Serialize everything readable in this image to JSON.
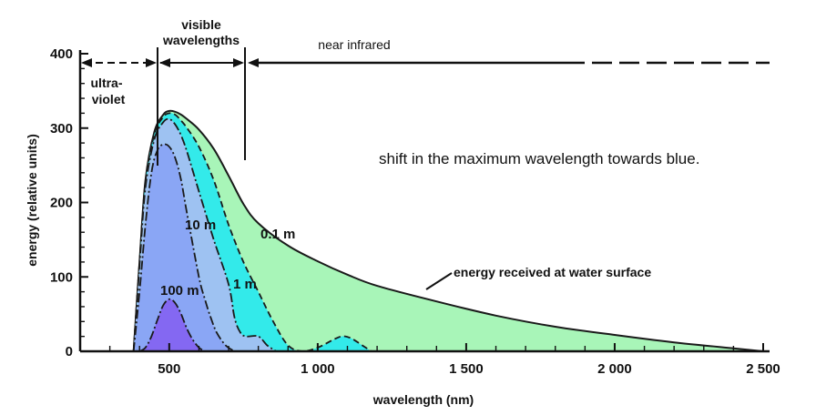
{
  "chart_data": {
    "type": "area",
    "xlabel": "wavelength (nm)",
    "ylabel": "energy (relative units)",
    "xlim": [
      200,
      2500
    ],
    "ylim": [
      0,
      400
    ],
    "x_ticks": [
      500,
      1000,
      1500,
      2000,
      2500
    ],
    "x_tick_labels": [
      "500",
      "1 000",
      "1 500",
      "2 000",
      "2 500"
    ],
    "y_ticks": [
      0,
      100,
      200,
      300,
      400
    ],
    "y_tick_labels": [
      "0",
      "100",
      "200",
      "300",
      "400"
    ],
    "bands": [
      {
        "label": "ultra-\nviolet",
        "range": [
          200,
          420
        ]
      },
      {
        "label": "visible\nwavelengths",
        "range": [
          420,
          720
        ]
      },
      {
        "label": "near infrared",
        "range": [
          720,
          2500
        ]
      }
    ],
    "series": [
      {
        "label": "energy received at water surface",
        "color": "#a8f5b8",
        "x": [
          380,
          400,
          420,
          450,
          480,
          500,
          520,
          540,
          560,
          600,
          650,
          700,
          750,
          800,
          900,
          1000,
          1100,
          1200,
          1400,
          1600,
          1800,
          2000,
          2200,
          2400,
          2500
        ],
        "y": [
          0,
          120,
          230,
          295,
          318,
          323,
          322,
          318,
          312,
          298,
          272,
          236,
          198,
          172,
          142,
          121,
          103,
          88,
          67,
          48,
          33,
          22,
          12,
          4,
          0
        ]
      },
      {
        "label": "0.1 m",
        "color": "#33eaea",
        "x": [
          380,
          400,
          420,
          450,
          480,
          500,
          520,
          540,
          560,
          600,
          650,
          700,
          750,
          800,
          850,
          900,
          950,
          1000,
          1050,
          1080,
          1110,
          1150,
          1180
        ],
        "y": [
          0,
          120,
          228,
          292,
          315,
          320,
          318,
          310,
          300,
          275,
          230,
          170,
          120,
          80,
          40,
          8,
          0,
          5,
          15,
          20,
          18,
          8,
          0
        ]
      },
      {
        "label": "1 m",
        "color": "#9ec2f2",
        "x": [
          380,
          400,
          420,
          450,
          480,
          500,
          520,
          540,
          560,
          600,
          650,
          700,
          720,
          740,
          760,
          800,
          830,
          860
        ],
        "y": [
          0,
          115,
          220,
          285,
          308,
          312,
          305,
          290,
          268,
          215,
          150,
          90,
          45,
          25,
          20,
          20,
          8,
          0
        ]
      },
      {
        "label": "10 m",
        "color": "#8aa6f5",
        "x": [
          380,
          400,
          420,
          440,
          460,
          480,
          500,
          520,
          540,
          560,
          600,
          620,
          640,
          660,
          690,
          720
        ],
        "y": [
          0,
          80,
          170,
          240,
          270,
          278,
          275,
          260,
          230,
          185,
          100,
          70,
          45,
          25,
          8,
          0
        ]
      },
      {
        "label": "100 m",
        "color": "#8468f2",
        "x": [
          400,
          420,
          440,
          460,
          480,
          500,
          520,
          540,
          560,
          580,
          600,
          620
        ],
        "y": [
          0,
          5,
          20,
          42,
          62,
          70,
          65,
          50,
          30,
          15,
          5,
          0
        ]
      }
    ],
    "annotations": [
      "shift in the maximum wavelength towards blue."
    ]
  }
}
